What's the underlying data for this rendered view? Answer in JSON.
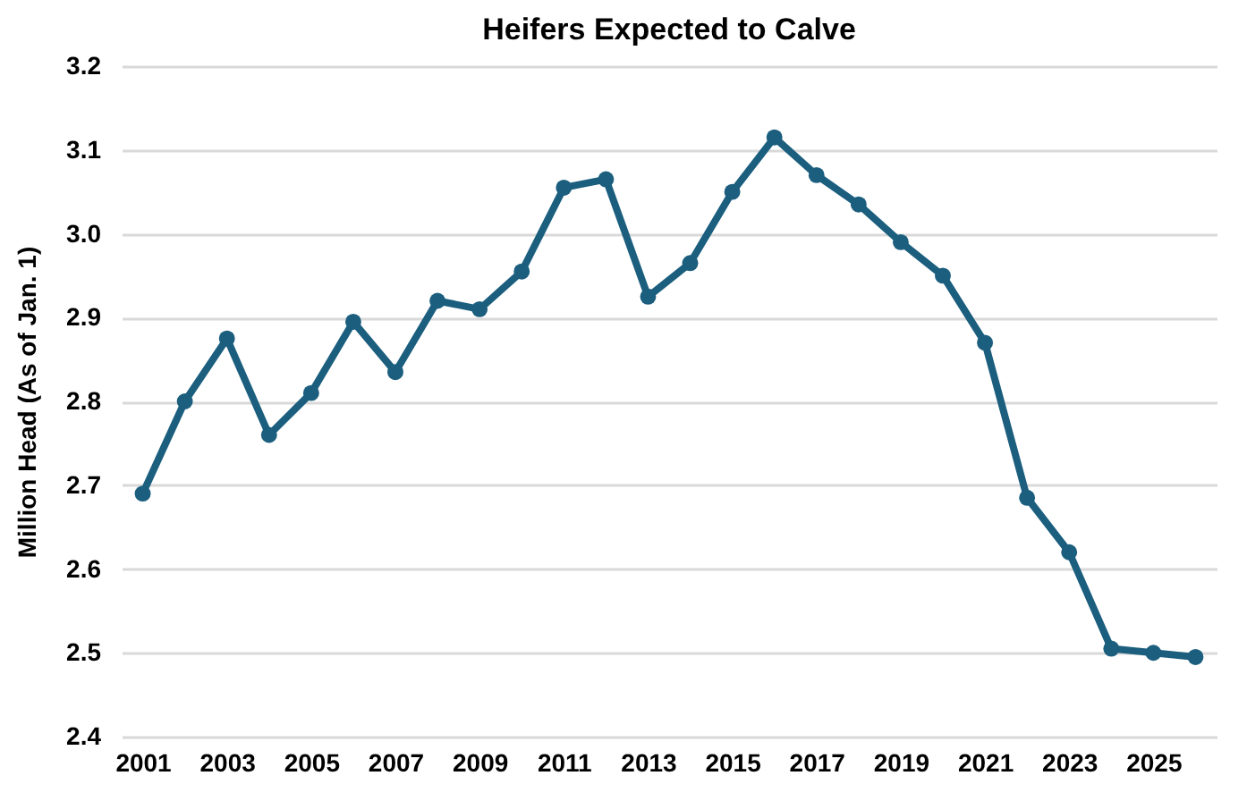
{
  "chart_data": {
    "type": "line",
    "title": "Heifers Expected to Calve",
    "ylabel": "Million Head (As of Jan. 1)",
    "categories": [
      "2001",
      null,
      "2003",
      null,
      "2005",
      null,
      "2007",
      null,
      "2009",
      null,
      "2011",
      null,
      "2013",
      null,
      "2015",
      null,
      "2017",
      null,
      "2019",
      null,
      "2021",
      null,
      "2023",
      null,
      "2025",
      null
    ],
    "series": [
      {
        "color": "#1b5e7e",
        "values": [
          2.69,
          2.8,
          2.875,
          2.76,
          2.81,
          2.895,
          2.835,
          2.92,
          2.91,
          2.955,
          3.055,
          3.065,
          2.925,
          2.965,
          3.05,
          3.115,
          3.07,
          3.035,
          2.99,
          2.95,
          2.87,
          2.685,
          2.62,
          2.505,
          2.5,
          2.495
        ]
      }
    ],
    "ylim": [
      2.4,
      3.2
    ],
    "yticks": [
      2.4,
      2.5,
      2.6,
      2.7,
      2.8,
      2.9,
      {
        "value": 3,
        "label": "3.0"
      },
      3.1,
      3.2
    ],
    "grid": "y",
    "marker": "circle",
    "line_style": "solid"
  }
}
